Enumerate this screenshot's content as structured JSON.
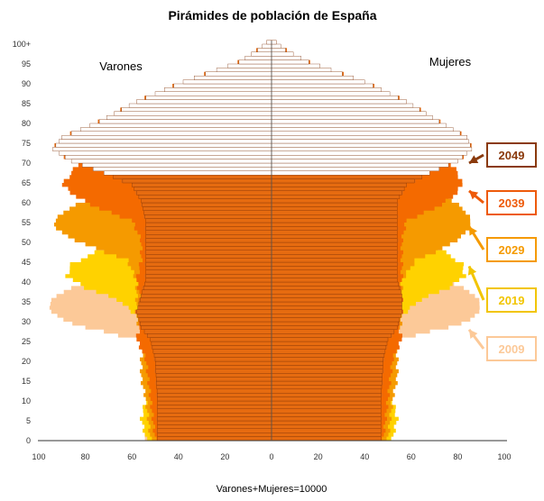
{
  "chart_data": {
    "type": "population-pyramid",
    "title": "Pirámides de población de España",
    "left_label": "Varones",
    "right_label": "Mujeres",
    "xlabel": "Varones+Mujeres=10000",
    "x_ticks": [
      "100",
      "80",
      "60",
      "40",
      "20",
      "0",
      "20",
      "40",
      "60",
      "80",
      "100"
    ],
    "y_ticks": [
      "0",
      "5",
      "10",
      "15",
      "20",
      "25",
      "30",
      "35",
      "40",
      "45",
      "50",
      "55",
      "60",
      "65",
      "70",
      "75",
      "80",
      "85",
      "90",
      "95",
      "100+"
    ],
    "xlim": [
      -100,
      100
    ],
    "ylim": [
      0,
      100
    ],
    "series": [
      {
        "name": "2009",
        "color": "#fcc998",
        "men": [
          [
            0,
            55
          ],
          [
            10,
            50
          ],
          [
            20,
            52
          ],
          [
            25,
            58
          ],
          [
            28,
            80
          ],
          [
            30,
            90
          ],
          [
            33,
            96
          ],
          [
            36,
            93
          ],
          [
            40,
            78
          ],
          [
            45,
            70
          ],
          [
            50,
            64
          ],
          [
            55,
            61
          ],
          [
            60,
            58
          ],
          [
            65,
            52
          ],
          [
            70,
            45
          ],
          [
            75,
            38
          ],
          [
            80,
            28
          ],
          [
            85,
            17
          ],
          [
            90,
            8
          ],
          [
            95,
            3
          ],
          [
            100,
            1
          ]
        ],
        "women": [
          [
            0,
            52
          ],
          [
            10,
            48
          ],
          [
            20,
            50
          ],
          [
            25,
            54
          ],
          [
            28,
            76
          ],
          [
            30,
            86
          ],
          [
            33,
            90
          ],
          [
            36,
            88
          ],
          [
            40,
            76
          ],
          [
            45,
            70
          ],
          [
            50,
            65
          ],
          [
            55,
            62
          ],
          [
            60,
            60
          ],
          [
            65,
            56
          ],
          [
            70,
            52
          ],
          [
            75,
            46
          ],
          [
            80,
            36
          ],
          [
            85,
            24
          ],
          [
            90,
            13
          ],
          [
            95,
            5
          ],
          [
            100,
            1
          ]
        ]
      },
      {
        "name": "2019",
        "color": "#ffd200",
        "men": [
          [
            0,
            54
          ],
          [
            5,
            56
          ],
          [
            10,
            54
          ],
          [
            20,
            50
          ],
          [
            30,
            56
          ],
          [
            35,
            66
          ],
          [
            38,
            80
          ],
          [
            41,
            88
          ],
          [
            44,
            86
          ],
          [
            48,
            72
          ],
          [
            52,
            66
          ],
          [
            56,
            62
          ],
          [
            60,
            58
          ],
          [
            66,
            53
          ],
          [
            72,
            46
          ],
          [
            78,
            38
          ],
          [
            84,
            26
          ],
          [
            88,
            17
          ],
          [
            92,
            9
          ],
          [
            96,
            3
          ],
          [
            100,
            1
          ]
        ],
        "women": [
          [
            0,
            52
          ],
          [
            5,
            54
          ],
          [
            10,
            52
          ],
          [
            20,
            48
          ],
          [
            30,
            54
          ],
          [
            35,
            64
          ],
          [
            38,
            76
          ],
          [
            41,
            83
          ],
          [
            44,
            82
          ],
          [
            48,
            72
          ],
          [
            52,
            66
          ],
          [
            56,
            62
          ],
          [
            60,
            60
          ],
          [
            66,
            56
          ],
          [
            72,
            52
          ],
          [
            78,
            44
          ],
          [
            84,
            32
          ],
          [
            88,
            22
          ],
          [
            92,
            12
          ],
          [
            96,
            4
          ],
          [
            100,
            1
          ]
        ]
      },
      {
        "name": "2029",
        "color": "#f59a00",
        "men": [
          [
            0,
            52
          ],
          [
            10,
            54
          ],
          [
            15,
            56
          ],
          [
            20,
            56
          ],
          [
            25,
            55
          ],
          [
            30,
            58
          ],
          [
            35,
            58
          ],
          [
            40,
            58
          ],
          [
            45,
            62
          ],
          [
            48,
            76
          ],
          [
            51,
            88
          ],
          [
            54,
            94
          ],
          [
            57,
            90
          ],
          [
            62,
            74
          ],
          [
            66,
            66
          ],
          [
            72,
            58
          ],
          [
            78,
            48
          ],
          [
            84,
            34
          ],
          [
            90,
            18
          ],
          [
            95,
            6
          ],
          [
            100,
            1
          ]
        ],
        "women": [
          [
            0,
            50
          ],
          [
            10,
            52
          ],
          [
            15,
            54
          ],
          [
            20,
            54
          ],
          [
            25,
            54
          ],
          [
            30,
            56
          ],
          [
            35,
            56
          ],
          [
            40,
            56
          ],
          [
            45,
            62
          ],
          [
            48,
            74
          ],
          [
            51,
            82
          ],
          [
            54,
            86
          ],
          [
            57,
            84
          ],
          [
            62,
            74
          ],
          [
            66,
            68
          ],
          [
            72,
            60
          ],
          [
            78,
            50
          ],
          [
            84,
            38
          ],
          [
            90,
            22
          ],
          [
            95,
            8
          ],
          [
            100,
            1
          ]
        ]
      },
      {
        "name": "2039",
        "color": "#f46a00",
        "men": [
          [
            0,
            50
          ],
          [
            10,
            52
          ],
          [
            20,
            54
          ],
          [
            25,
            58
          ],
          [
            30,
            56
          ],
          [
            35,
            56
          ],
          [
            40,
            58
          ],
          [
            45,
            56
          ],
          [
            50,
            56
          ],
          [
            55,
            60
          ],
          [
            58,
            74
          ],
          [
            61,
            84
          ],
          [
            64,
            90
          ],
          [
            67,
            86
          ],
          [
            72,
            80
          ],
          [
            78,
            62
          ],
          [
            84,
            46
          ],
          [
            90,
            26
          ],
          [
            95,
            10
          ],
          [
            100,
            2
          ]
        ],
        "women": [
          [
            0,
            48
          ],
          [
            10,
            50
          ],
          [
            20,
            52
          ],
          [
            25,
            56
          ],
          [
            30,
            54
          ],
          [
            35,
            54
          ],
          [
            40,
            56
          ],
          [
            45,
            56
          ],
          [
            50,
            56
          ],
          [
            55,
            58
          ],
          [
            58,
            70
          ],
          [
            61,
            78
          ],
          [
            64,
            82
          ],
          [
            67,
            80
          ],
          [
            72,
            74
          ],
          [
            78,
            64
          ],
          [
            84,
            48
          ],
          [
            90,
            28
          ],
          [
            95,
            12
          ],
          [
            100,
            2
          ]
        ]
      },
      {
        "name": "2049",
        "color": "#e66b10",
        "men": [
          [
            0,
            49
          ],
          [
            10,
            49
          ],
          [
            20,
            50
          ],
          [
            25,
            52
          ],
          [
            28,
            56
          ],
          [
            32,
            58
          ],
          [
            36,
            56
          ],
          [
            40,
            54
          ],
          [
            45,
            54
          ],
          [
            50,
            54
          ],
          [
            55,
            54
          ],
          [
            60,
            56
          ],
          [
            64,
            60
          ],
          [
            67,
            72
          ],
          [
            70,
            86
          ],
          [
            73,
            94
          ],
          [
            76,
            90
          ],
          [
            80,
            74
          ],
          [
            85,
            58
          ],
          [
            90,
            38
          ],
          [
            95,
            14
          ],
          [
            98,
            6
          ],
          [
            100,
            2
          ]
        ],
        "women": [
          [
            0,
            47
          ],
          [
            10,
            47
          ],
          [
            20,
            48
          ],
          [
            25,
            50
          ],
          [
            28,
            54
          ],
          [
            32,
            56
          ],
          [
            36,
            56
          ],
          [
            40,
            54
          ],
          [
            45,
            54
          ],
          [
            50,
            54
          ],
          [
            55,
            54
          ],
          [
            60,
            54
          ],
          [
            64,
            58
          ],
          [
            67,
            68
          ],
          [
            70,
            80
          ],
          [
            73,
            86
          ],
          [
            76,
            84
          ],
          [
            80,
            72
          ],
          [
            85,
            58
          ],
          [
            90,
            40
          ],
          [
            95,
            16
          ],
          [
            98,
            6
          ],
          [
            100,
            2
          ]
        ]
      }
    ],
    "old_age_bars_color": "#ffffff",
    "badges": [
      {
        "label": "2049",
        "color": "#8a3a0c"
      },
      {
        "label": "2039",
        "color": "#ee5a0a"
      },
      {
        "label": "2029",
        "color": "#f59a00"
      },
      {
        "label": "2019",
        "color": "#f2c500"
      },
      {
        "label": "2009",
        "color": "#fcc998"
      }
    ]
  }
}
